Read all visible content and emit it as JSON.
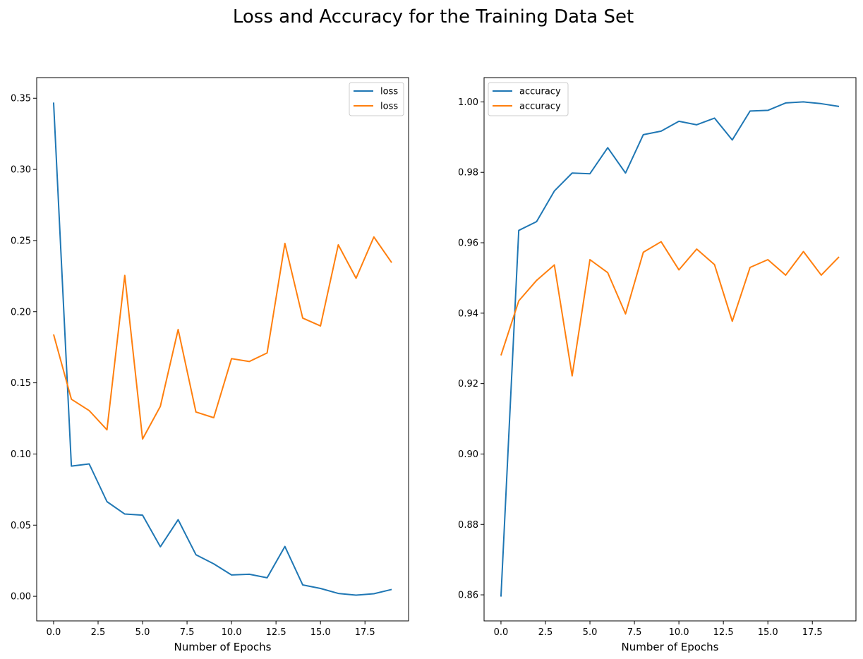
{
  "figure": {
    "suptitle": "Loss and Accuracy for the Training Data Set"
  },
  "chart_data": [
    {
      "type": "line",
      "title": "",
      "xlabel": "Number of Epochs",
      "ylabel": "",
      "xlim": [
        -0.95,
        19.95
      ],
      "ylim": [
        -0.0173,
        0.3645
      ],
      "xticks": [
        0.0,
        2.5,
        5.0,
        7.5,
        10.0,
        12.5,
        15.0,
        17.5
      ],
      "xtick_labels": [
        "0.0",
        "2.5",
        "5.0",
        "7.5",
        "10.0",
        "12.5",
        "15.0",
        "17.5"
      ],
      "yticks": [
        0.0,
        0.05,
        0.1,
        0.15,
        0.2,
        0.25,
        0.3,
        0.35
      ],
      "ytick_labels": [
        "0.00",
        "0.05",
        "0.10",
        "0.15",
        "0.20",
        "0.25",
        "0.30",
        "0.35"
      ],
      "grid": false,
      "legend": "top-right",
      "x": [
        0,
        1,
        2,
        3,
        4,
        5,
        6,
        7,
        8,
        9,
        10,
        11,
        12,
        13,
        14,
        15,
        16,
        17,
        18,
        19
      ],
      "series": [
        {
          "name": "loss",
          "color": "#1f77b4",
          "values": [
            0.347,
            0.0915,
            0.093,
            0.0665,
            0.0578,
            0.057,
            0.0348,
            0.0538,
            0.0292,
            0.0228,
            0.015,
            0.0155,
            0.013,
            0.035,
            0.008,
            0.0055,
            0.002,
            0.0008,
            0.0018,
            0.0048
          ]
        },
        {
          "name": "loss",
          "color": "#ff7f0e",
          "values": [
            0.184,
            0.1385,
            0.1305,
            0.117,
            0.2255,
            0.1105,
            0.1335,
            0.1875,
            0.1295,
            0.1255,
            0.167,
            0.165,
            0.171,
            0.248,
            0.1955,
            0.19,
            0.247,
            0.2235,
            0.2525,
            0.2345
          ]
        }
      ]
    },
    {
      "type": "line",
      "title": "",
      "xlabel": "Number of Epochs",
      "ylabel": "",
      "xlim": [
        -0.95,
        19.95
      ],
      "ylim": [
        0.8526,
        1.0069
      ],
      "xticks": [
        0.0,
        2.5,
        5.0,
        7.5,
        10.0,
        12.5,
        15.0,
        17.5
      ],
      "xtick_labels": [
        "0.0",
        "2.5",
        "5.0",
        "7.5",
        "10.0",
        "12.5",
        "15.0",
        "17.5"
      ],
      "yticks": [
        0.86,
        0.88,
        0.9,
        0.92,
        0.94,
        0.96,
        0.98,
        1.0
      ],
      "ytick_labels": [
        "0.86",
        "0.88",
        "0.90",
        "0.92",
        "0.94",
        "0.96",
        "0.98",
        "1.00"
      ],
      "grid": false,
      "legend": "top-left",
      "x": [
        0,
        1,
        2,
        3,
        4,
        5,
        6,
        7,
        8,
        9,
        10,
        11,
        12,
        13,
        14,
        15,
        16,
        17,
        18,
        19
      ],
      "series": [
        {
          "name": "accuracy",
          "color": "#1f77b4",
          "values": [
            0.8595,
            0.9635,
            0.966,
            0.9747,
            0.9798,
            0.9796,
            0.987,
            0.9798,
            0.9907,
            0.9917,
            0.9945,
            0.9935,
            0.9954,
            0.9892,
            0.9974,
            0.9976,
            0.9997,
            1.0,
            0.9995,
            0.9987
          ]
        },
        {
          "name": "accuracy",
          "color": "#ff7f0e",
          "values": [
            0.928,
            0.9435,
            0.9493,
            0.9537,
            0.9222,
            0.9552,
            0.9515,
            0.9398,
            0.9573,
            0.9603,
            0.9523,
            0.9582,
            0.9538,
            0.9377,
            0.953,
            0.9552,
            0.9508,
            0.9575,
            0.9508,
            0.956
          ]
        }
      ]
    }
  ]
}
